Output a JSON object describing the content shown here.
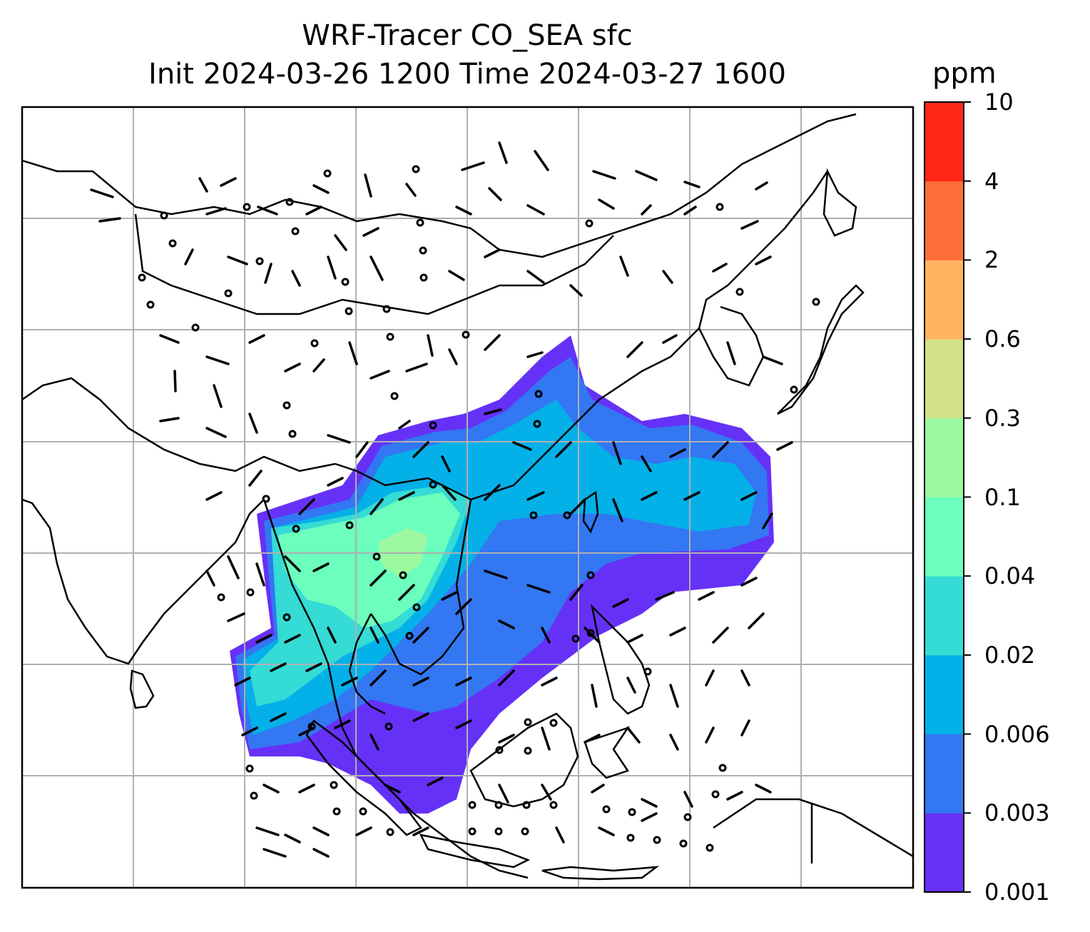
{
  "title": {
    "line1": "WRF-Tracer CO_SEA sfc",
    "line2": "Init 2024-03-26 1200 Time 2024-03-27 1600"
  },
  "colorbar": {
    "unit": "ppm",
    "levels": [
      "0.001",
      "0.003",
      "0.006",
      "0.02",
      "0.04",
      "0.1",
      "0.3",
      "0.6",
      "2",
      "4",
      "10"
    ],
    "colors": [
      "#6631f7",
      "#3377f2",
      "#04b0e8",
      "#35dbd5",
      "#6bfebd",
      "#9cf9a0",
      "#d1e289",
      "#ffb360",
      "#ff6f3a",
      "#ff2718"
    ]
  },
  "map": {
    "background": "#ffffff",
    "coastline_color": "#000000",
    "grid_color": "#b0b0b0",
    "wind_symbol": "wind-barb",
    "calm_symbol": "calm-circle"
  }
}
